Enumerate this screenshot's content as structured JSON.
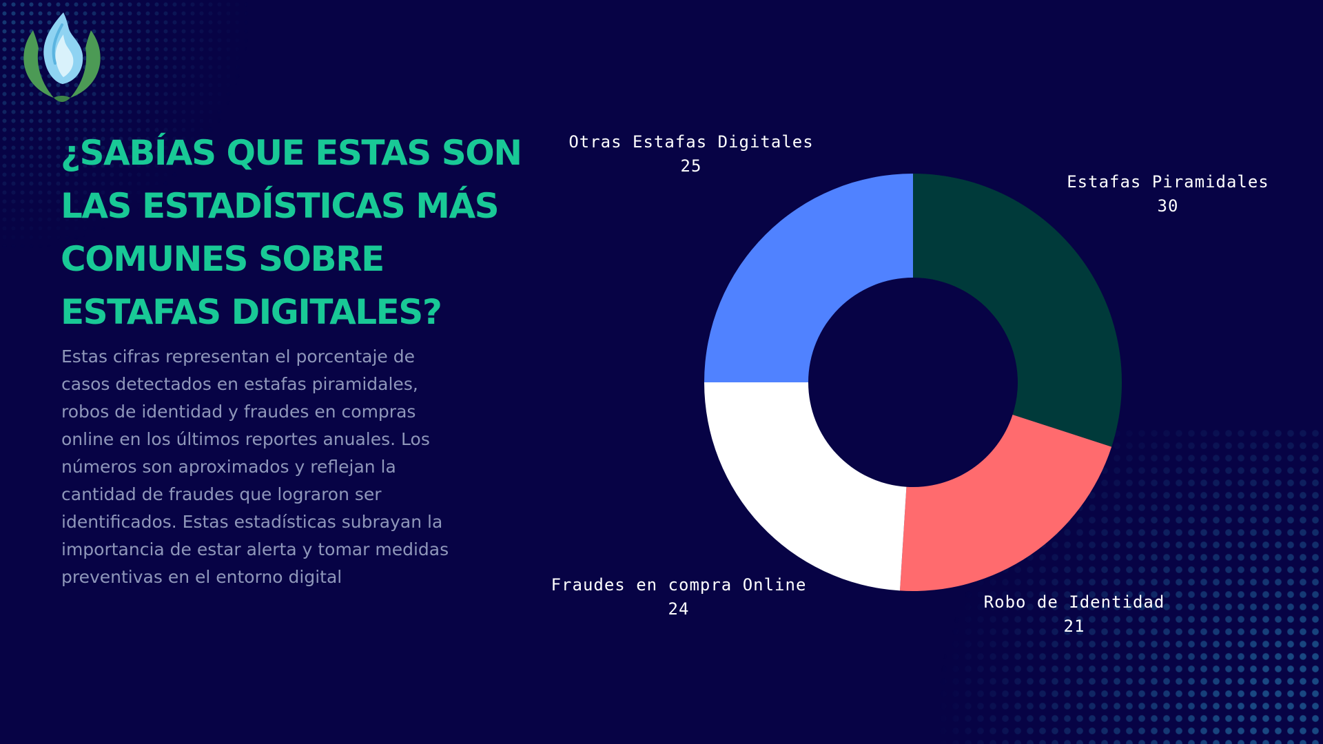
{
  "colors": {
    "background": "#070345",
    "title": "#19c996",
    "body_text": "#8f97ba",
    "label_text": "#ffffff",
    "logo_leaves": "#4c9a55",
    "logo_flame": "#8fd3f2"
  },
  "logo": {
    "icon": "lotus-flame-icon"
  },
  "title": "¿Sabías que estas son\nlas estadísticas más\ncomunes sobre\nestafas digitales?",
  "description": "Estas cifras representan el porcentaje de\ncasos detectados en estafas piramidales,\nrobos de identidad y fraudes en compras\nonline en los últimos reportes anuales. Los\nnúmeros son aproximados y reflejan la\ncantidad de fraudes que lograron ser\nidentificados. Estas estadísticas subrayan la\nimportancia de estar alerta y tomar medidas\npreventivas en el entorno digital",
  "chart_data": {
    "type": "pie",
    "donut": true,
    "start_angle": "12 o'clock",
    "direction": "clockwise",
    "legend": "none",
    "data_labels": "outside",
    "categories": [
      "Estafas Piramidales",
      "Robo de Identidad",
      "Fraudes en compra Online",
      "Otras Estafas Digitales"
    ],
    "values": [
      30,
      21,
      24,
      25
    ],
    "colors": [
      "#003a3a",
      "#ff6b6e",
      "#ffffff",
      "#5082ff"
    ]
  }
}
